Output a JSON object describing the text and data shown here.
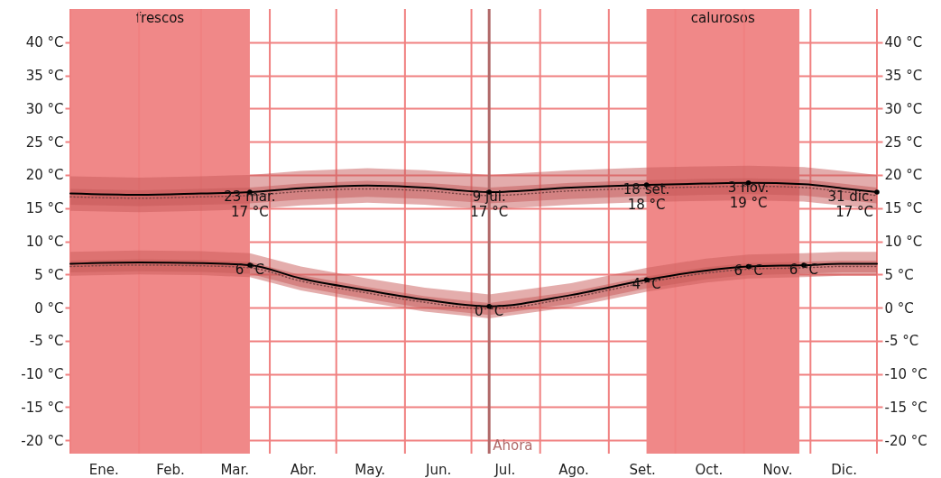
{
  "chart_data": {
    "type": "line",
    "x": [
      "--01-01",
      "--02-01",
      "--03-01",
      "--03-23",
      "--04-15",
      "--05-15",
      "--06-10",
      "--07-09",
      "--08-15",
      "--09-18",
      "--10-15",
      "--11-03",
      "--11-28",
      "--12-15",
      "--12-31"
    ],
    "series": [
      {
        "color": "#000000",
        "values": [
          17.2,
          17.0,
          17.2,
          17.4,
          18.0,
          18.4,
          18.1,
          17.4,
          18.1,
          18.5,
          18.7,
          18.8,
          18.6,
          18.0,
          17.4
        ],
        "lower": [
          14.6,
          14.4,
          14.6,
          14.8,
          15.4,
          15.8,
          15.5,
          14.8,
          15.5,
          15.9,
          16.1,
          16.2,
          16.0,
          15.4,
          14.8
        ],
        "upper": [
          19.8,
          19.6,
          19.8,
          20.0,
          20.6,
          21.0,
          20.7,
          20.0,
          20.7,
          21.1,
          21.3,
          21.4,
          21.2,
          20.6,
          20.0
        ]
      },
      {
        "color": "#000000",
        "values": [
          6.6,
          6.8,
          6.7,
          6.4,
          4.4,
          2.6,
          1.2,
          0.2,
          1.9,
          4.2,
          5.6,
          6.2,
          6.4,
          6.6,
          6.6
        ],
        "lower": [
          4.8,
          5.0,
          4.9,
          4.6,
          2.6,
          0.8,
          -0.6,
          -1.6,
          0.1,
          2.4,
          3.8,
          4.4,
          4.6,
          4.8,
          4.8
        ],
        "upper": [
          8.4,
          8.6,
          8.5,
          8.2,
          6.2,
          4.4,
          3.0,
          2.0,
          3.7,
          6.0,
          7.4,
          8.0,
          8.2,
          8.4,
          8.4
        ]
      },
      {
        "color": "#7a4545",
        "line_style": "dotted",
        "values": [
          16.7,
          16.5,
          16.7,
          16.9,
          17.5,
          17.9,
          17.6,
          16.9,
          17.6,
          18.0,
          18.2,
          18.3,
          18.1,
          17.5,
          16.9
        ],
        "lower": [
          15.5,
          15.3,
          15.5,
          15.7,
          16.3,
          16.7,
          16.4,
          15.7,
          16.4,
          16.8,
          17.0,
          17.1,
          16.9,
          16.3,
          15.7
        ],
        "upper": [
          17.9,
          17.7,
          17.9,
          18.1,
          18.7,
          19.1,
          18.8,
          18.1,
          18.8,
          19.2,
          19.4,
          19.5,
          19.3,
          18.7,
          18.1
        ]
      },
      {
        "color": "#7a4545",
        "line_style": "dotted",
        "values": [
          6.2,
          6.4,
          6.3,
          6.0,
          4.0,
          2.2,
          0.8,
          -0.2,
          1.5,
          3.8,
          5.2,
          5.8,
          6.0,
          6.2,
          6.2
        ],
        "lower": [
          5.3,
          5.5,
          5.4,
          5.1,
          3.1,
          1.3,
          -0.1,
          -1.1,
          0.6,
          2.9,
          4.3,
          4.9,
          5.1,
          5.3,
          5.3
        ],
        "upper": [
          7.1,
          7.3,
          7.2,
          6.9,
          4.9,
          3.1,
          1.7,
          0.7,
          2.4,
          4.7,
          6.1,
          6.7,
          6.9,
          7.1,
          7.1
        ]
      }
    ],
    "xlim": [
      "--01-01",
      "--12-31"
    ],
    "xticks": [
      {
        "value": "--01-01",
        "label": null
      },
      {
        "value": "--01-16",
        "label": "Ene."
      },
      {
        "value": "--02-01",
        "label": null
      },
      {
        "value": "--02-15",
        "label": "Feb."
      },
      {
        "value": "--03-01",
        "label": null
      },
      {
        "value": "--03-16",
        "label": "Mar."
      },
      {
        "value": "--04-01",
        "label": null
      },
      {
        "value": "--04-16",
        "label": "Abr."
      },
      {
        "value": "--05-01",
        "label": null
      },
      {
        "value": "--05-16",
        "label": "May."
      },
      {
        "value": "--06-01",
        "label": null
      },
      {
        "value": "--06-16",
        "label": "Jun."
      },
      {
        "value": "--07-01",
        "label": null
      },
      {
        "value": "--07-16",
        "label": "Jul."
      },
      {
        "value": "--08-01",
        "label": null
      },
      {
        "value": "--08-16",
        "label": "Ago."
      },
      {
        "value": "--09-01",
        "label": null
      },
      {
        "value": "--09-16",
        "label": "Set."
      },
      {
        "value": "--10-01",
        "label": null
      },
      {
        "value": "--10-16",
        "label": "Oct."
      },
      {
        "value": "--11-01",
        "label": null
      },
      {
        "value": "--11-16",
        "label": "Nov."
      },
      {
        "value": "--12-01",
        "label": null
      },
      {
        "value": "--12-16",
        "label": "Dic."
      },
      {
        "value": "--12-31",
        "label": null
      }
    ],
    "ylim": [
      -22,
      45
    ],
    "yticks": [
      {
        "value": -20,
        "label": "-20 °C"
      },
      {
        "value": -15,
        "label": "-15 °C"
      },
      {
        "value": -10,
        "label": "-10 °C"
      },
      {
        "value": -5,
        "label": "-5 °C"
      },
      {
        "value": 0,
        "label": "0 °C"
      },
      {
        "value": 5,
        "label": "5 °C"
      },
      {
        "value": 10,
        "label": "10 °C"
      },
      {
        "value": 15,
        "label": "15 °C"
      },
      {
        "value": 20,
        "label": "20 °C"
      },
      {
        "value": 25,
        "label": "25 °C"
      },
      {
        "value": 30,
        "label": "30 °C"
      },
      {
        "value": 35,
        "label": "35 °C"
      },
      {
        "value": 40,
        "label": "40 °C"
      }
    ],
    "y2lim": [
      -22,
      45
    ],
    "y2ticks": [
      {
        "value": -20,
        "label": "-20 °C"
      },
      {
        "value": -15,
        "label": "-15 °C"
      },
      {
        "value": -10,
        "label": "-10 °C"
      },
      {
        "value": -5,
        "label": "-5 °C"
      },
      {
        "value": 0,
        "label": "0 °C"
      },
      {
        "value": 5,
        "label": "5 °C"
      },
      {
        "value": 10,
        "label": "10 °C"
      },
      {
        "value": 15,
        "label": "15 °C"
      },
      {
        "value": 20,
        "label": "20 °C"
      },
      {
        "value": 25,
        "label": "25 °C"
      },
      {
        "value": 30,
        "label": "30 °C"
      },
      {
        "value": 35,
        "label": "35 °C"
      },
      {
        "value": 40,
        "label": "40 °C"
      }
    ],
    "grid": true,
    "bands": [
      {
        "axis": "x",
        "from": "--01-01",
        "to": "--03-23",
        "label": "frescos",
        "color": "#f08888"
      },
      {
        "axis": "x",
        "from": "--09-18",
        "to": "--11-26",
        "label": "calurosos",
        "color": "#f08888"
      }
    ],
    "ref_lines": [
      {
        "axis": "x",
        "value": "--07-09",
        "label": "Ahora",
        "color": "#b06868"
      }
    ],
    "annotations": [
      {
        "text": "23 mar.\n17 °C",
        "x": "--03-23",
        "y": 17.4
      },
      {
        "text": "6 °C",
        "x": "--03-23",
        "y": 6.4
      },
      {
        "text": "9 jul.\n17 °C",
        "x": "--07-09",
        "y": 17.4
      },
      {
        "text": "0 °C",
        "x": "--07-09",
        "y": 0.2
      },
      {
        "text": "18 set.\n18 °C",
        "x": "--09-18",
        "y": 18.5
      },
      {
        "text": "4 °C",
        "x": "--09-18",
        "y": 4.2
      },
      {
        "text": "3 nov.\n19 °C",
        "x": "--11-03",
        "y": 18.8
      },
      {
        "text": "6 °C",
        "x": "--11-03",
        "y": 6.2
      },
      {
        "text": "6 °C",
        "x": "--11-28",
        "y": 6.4
      },
      {
        "text": "31 dic.\n17 °C",
        "x": "--12-31",
        "y": 17.4
      }
    ]
  }
}
